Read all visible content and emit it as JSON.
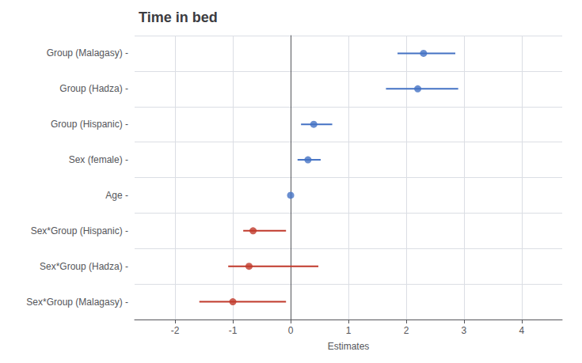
{
  "chart_data": {
    "type": "scatter",
    "orientation": "horizontal",
    "title": "Time in bed",
    "xlabel": "Estimates",
    "categories": [
      "Group (Malagasy) -",
      "Group (Hadza) -",
      "Group (Hispanic) -",
      "Sex (female) -",
      "Age -",
      "Sex*Group (Hispanic) -",
      "Sex*Group (Hadza) -",
      "Sex*Group (Malagasy) -"
    ],
    "values": [
      2.3,
      2.2,
      0.4,
      0.3,
      0.0,
      -0.65,
      -0.72,
      -1.0
    ],
    "ci_low": [
      1.85,
      1.65,
      0.18,
      0.12,
      0.0,
      -0.82,
      -1.08,
      -1.58
    ],
    "ci_high": [
      2.85,
      2.9,
      0.72,
      0.52,
      0.0,
      -0.08,
      0.48,
      -0.08
    ],
    "colors": [
      "#4472C4",
      "#4472C4",
      "#4472C4",
      "#4472C4",
      "#4472C4",
      "#C0392B",
      "#C0392B",
      "#C0392B"
    ],
    "xlim": [
      -2.7,
      4.7
    ],
    "xticks": [
      -2,
      -1,
      0,
      1,
      2,
      3,
      4
    ],
    "grid": true
  }
}
